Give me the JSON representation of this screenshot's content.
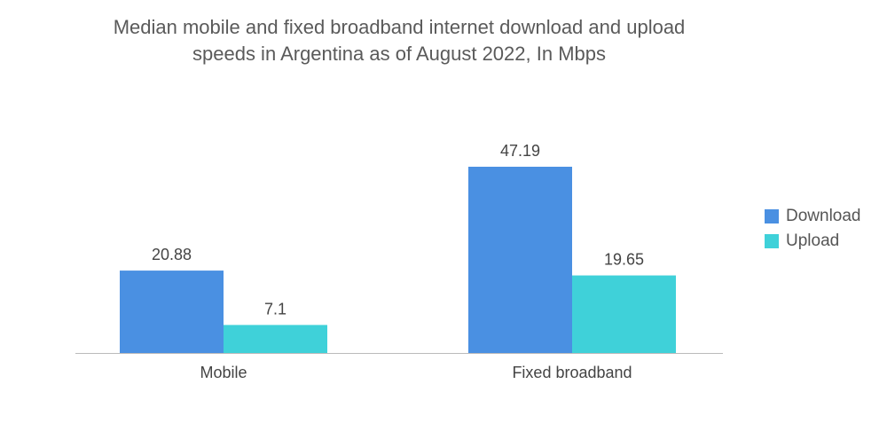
{
  "chart_data": {
    "type": "bar",
    "title_lines": [
      "Median mobile and fixed broadband internet download and upload",
      "speeds in Argentina as of August 2022, In Mbps"
    ],
    "categories": [
      "Mobile",
      "Fixed broadband"
    ],
    "series": [
      {
        "name": "Download",
        "values": [
          20.88,
          47.19
        ],
        "labels": [
          "20.88",
          "47.19"
        ],
        "color": "#4a90e2"
      },
      {
        "name": "Upload",
        "values": [
          7.1,
          19.65
        ],
        "labels": [
          "7.1",
          "19.65"
        ],
        "color": "#3fd1d9"
      }
    ],
    "ylim": [
      0,
      50
    ],
    "grid": false,
    "legend_position": "right",
    "axis_color": "#bbbbbb"
  }
}
